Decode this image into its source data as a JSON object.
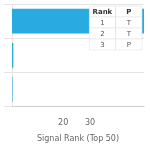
{
  "chart_data": {
    "type": "bar",
    "orientation": "horizontal",
    "xlabel": "Signal Rank (Top 50)",
    "categories": [
      null,
      null,
      null
    ],
    "values": [
      50,
      1.5,
      1.2
    ],
    "color": "#29ABE2",
    "xlim": [
      1,
      50
    ],
    "xticks": [
      20,
      30
    ],
    "grid": true,
    "tick_labels": "x",
    "table": {
      "headers": [
        "Rank",
        "P"
      ],
      "rows": [
        [
          "1",
          "T"
        ],
        [
          "2",
          "T"
        ],
        [
          "3",
          "P"
        ]
      ]
    }
  }
}
